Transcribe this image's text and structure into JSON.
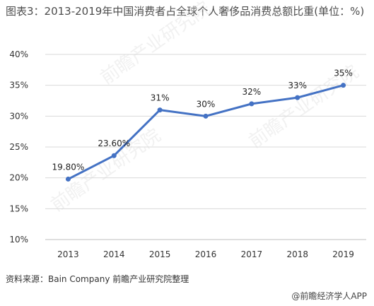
{
  "title": "图表3：2013-2019年中国消费者占全球个人奢侈品消费总额比重(单位：%)",
  "chart_data": {
    "type": "line",
    "title": "图表3：2013-2019年中国消费者占全球个人奢侈品消费总额比重(单位：%)",
    "categories": [
      "2013",
      "2014",
      "2015",
      "2016",
      "2017",
      "2018",
      "2019"
    ],
    "values": [
      19.8,
      23.6,
      31,
      30,
      32,
      33,
      35
    ],
    "data_labels": [
      "19.80%",
      "23.60%",
      "31%",
      "30%",
      "32%",
      "33%",
      "35%"
    ],
    "y_ticks": [
      "10%",
      "15%",
      "20%",
      "25%",
      "30%",
      "35%",
      "40%"
    ],
    "ylim": [
      10,
      40
    ],
    "xlabel": "",
    "ylabel": "",
    "grid": "horizontal",
    "series_color": "#4472C4"
  },
  "source": "资料来源：Bain Company 前瞻产业研究院整理",
  "brand": "@前瞻经济学人APP",
  "watermark": "前瞻产业研究院",
  "brand_icon": "chat-bubble-icon"
}
